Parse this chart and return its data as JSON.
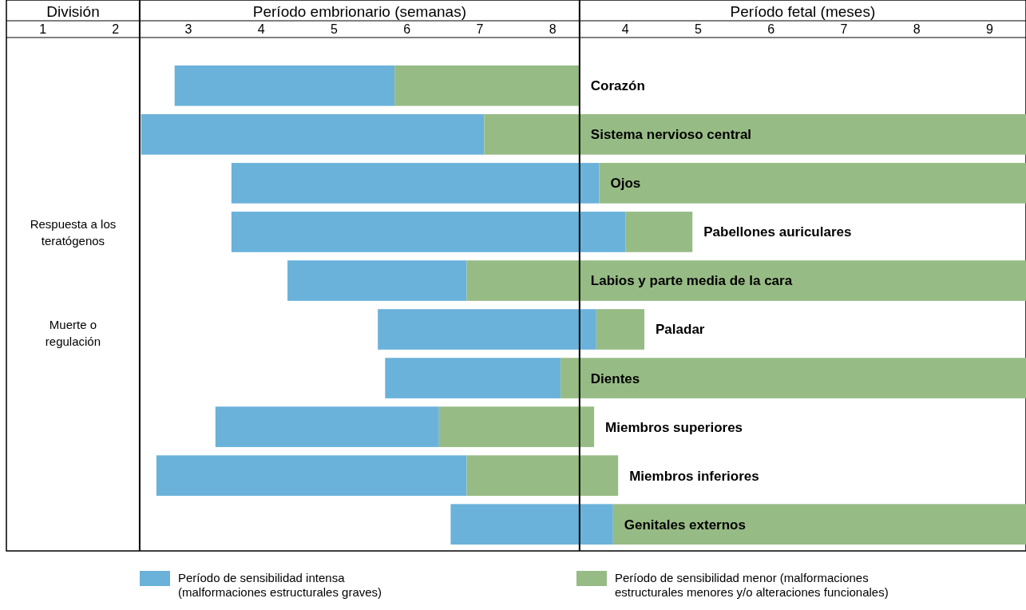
{
  "chart_data": {
    "type": "bar",
    "orientation": "horizontal",
    "categories": [
      "Corazón",
      "Sistema nervioso central",
      "Ojos",
      "Pabellones auriculares",
      "Labios y parte media de la cara",
      "Paladar",
      "Dientes",
      "Miembros superiores",
      "Miembros inferiores",
      "Genitales externos"
    ],
    "series": [
      {
        "name": "Período de sensibilidad intensa (malformaciones estructurales graves)",
        "color": "#6ab2da",
        "base": [
          2.81,
          2.35,
          3.59,
          3.59,
          4.36,
          5.6,
          5.7,
          3.37,
          2.56,
          6.6
        ],
        "values": [
          3.02,
          4.71,
          5.05,
          5.41,
          2.46,
          3.0,
          2.41,
          3.07,
          4.26,
          2.23
        ]
      },
      {
        "name": "Período de sensibilidad menor (malformaciones estructurales menores y/o alteraciones funcionales)",
        "color": "#97bb85",
        "base": [
          5.83,
          7.06,
          8.64,
          9.0,
          6.82,
          8.6,
          8.11,
          6.44,
          6.82,
          8.83
        ],
        "values": [
          2.53,
          7.44,
          5.86,
          0.92,
          7.68,
          0.66,
          6.39,
          2.13,
          2.08,
          5.67
        ]
      }
    ],
    "xlim": [
      0.5,
      14.5
    ],
    "xticks": [
      1,
      2,
      3,
      4,
      5,
      6,
      7,
      8
    ],
    "x2lim": [
      -4.5,
      9.5
    ],
    "x2ticks": [
      4,
      5,
      6,
      7,
      8,
      9
    ],
    "ref_lines": [
      {
        "axis": "x",
        "value": 2.33,
        "color": "#000000"
      },
      {
        "axis": "x",
        "value": 8.37,
        "color": "#000000"
      }
    ],
    "annotations": [
      "División",
      "Período embrionario (semanas)",
      "Período fetal (meses)",
      "Respuesta a los teratógenos",
      "Muerte o regulación"
    ],
    "legend": "bottom",
    "grid": false
  }
}
